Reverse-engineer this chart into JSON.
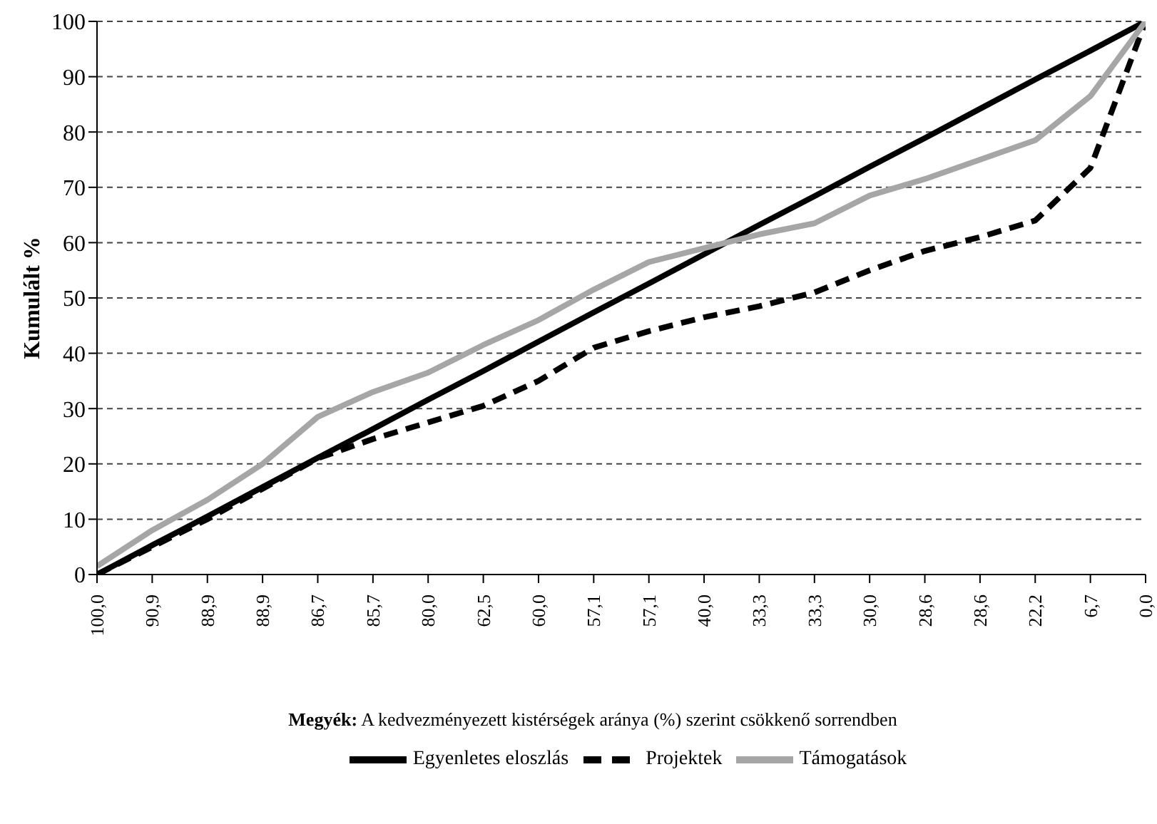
{
  "chart_data": {
    "type": "line",
    "ylabel": "Kumulált %",
    "xlabel": "Megyék: A kedvezményezett kistérségek aránya (%) szerint csökkenő sorrendben",
    "categories": [
      "100,0",
      "90,9",
      "88,9",
      "88,9",
      "86,7",
      "85,7",
      "80,0",
      "62,5",
      "60,0",
      "57,1",
      "57,1",
      "40,0",
      "33,3",
      "33,3",
      "30,0",
      "28,6",
      "28,6",
      "22,2",
      "6,7",
      "0,0"
    ],
    "series": [
      {
        "name": "Egyenletes eloszlás",
        "color": "#000000",
        "line_style": "solid",
        "values": [
          0,
          5.3,
          10.5,
          15.8,
          21.1,
          26.3,
          31.6,
          36.8,
          42.1,
          47.4,
          52.6,
          57.9,
          63.2,
          68.4,
          73.7,
          78.9,
          84.2,
          89.5,
          94.7,
          100
        ]
      },
      {
        "name": "Projektek",
        "color": "#000000",
        "line_style": "dashed",
        "values": [
          0,
          5,
          10,
          15.5,
          21,
          24.5,
          27.5,
          30.5,
          35,
          41,
          44,
          46.5,
          48.5,
          51,
          55,
          58.5,
          61,
          64,
          73.5,
          100
        ]
      },
      {
        "name": "Támogatások",
        "color": "#a6a6a6",
        "line_style": "solid",
        "values": [
          1.5,
          8,
          13.5,
          20,
          28.5,
          33,
          36.5,
          41.5,
          46,
          51.5,
          56.5,
          59,
          61.5,
          63.5,
          68.5,
          71.5,
          75,
          78.5,
          86.5,
          100
        ]
      }
    ],
    "ylim": [
      0,
      100
    ],
    "yticks": [
      0,
      10,
      20,
      30,
      40,
      50,
      60,
      70,
      80,
      90,
      100
    ],
    "grid": "y",
    "legend": "bottom",
    "marker": "none"
  }
}
